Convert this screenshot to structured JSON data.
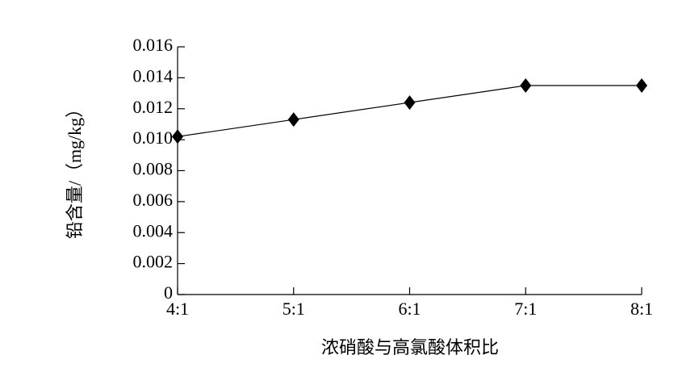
{
  "chart_data": {
    "type": "line",
    "categories": [
      "4:1",
      "5:1",
      "6:1",
      "7:1",
      "8:1"
    ],
    "values": [
      0.0102,
      0.0113,
      0.0124,
      0.0135,
      0.0135
    ],
    "color": "#000000",
    "ylim": [
      0,
      0.016
    ],
    "yticks": [
      0,
      0.002,
      0.004,
      0.006,
      0.008,
      {
        "value": 0.01,
        "label": "0.010"
      },
      0.012,
      0.014,
      0.016
    ],
    "xlabel": "浓硝酸与高氯酸体积比",
    "ylabel": "铅含量/（mg/kg）",
    "marker": "diamond"
  }
}
